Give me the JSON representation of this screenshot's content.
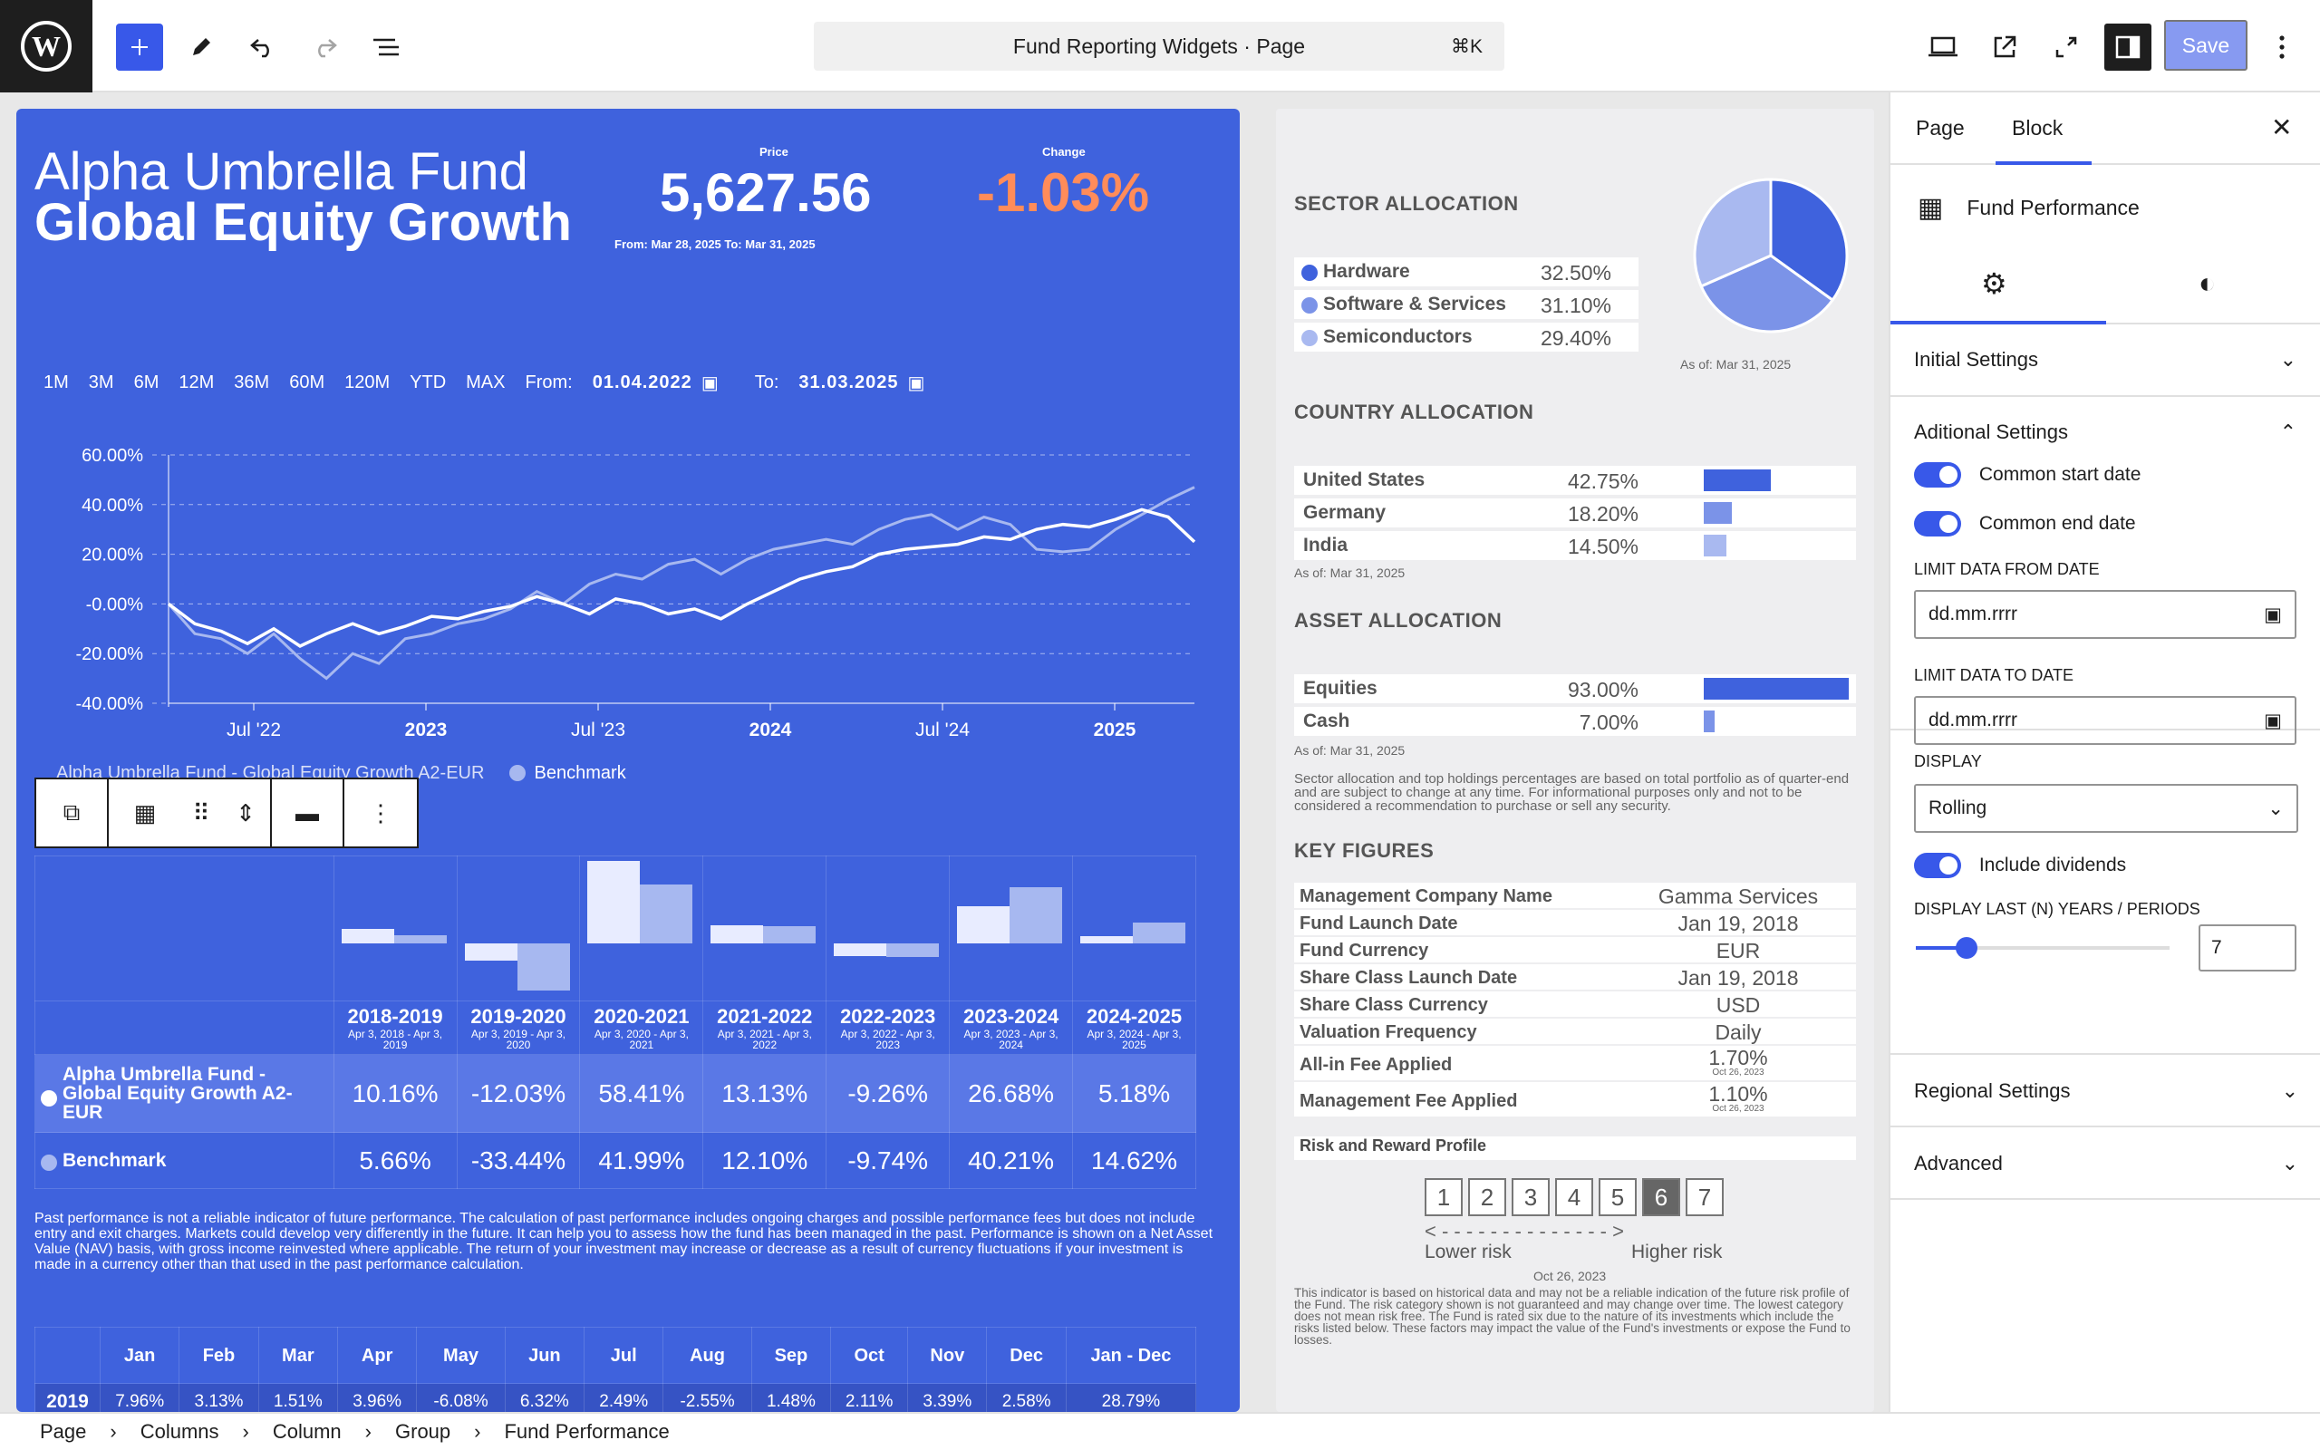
{
  "topbar": {
    "command_title": "Fund Reporting Widgets · Page",
    "shortcut": "⌘K",
    "save_label": "Save"
  },
  "fund": {
    "name_line1": "Alpha Umbrella Fund",
    "name_line2": "Global Equity Growth",
    "price_label": "Price",
    "price": "5,627.56",
    "change_label": "Change",
    "change": "-1.03%",
    "range": "From: Mar 28, 2025 To: Mar 31, 2025"
  },
  "periods": {
    "buttons": [
      "1M",
      "3M",
      "6M",
      "12M",
      "36M",
      "60M",
      "120M",
      "YTD",
      "MAX"
    ],
    "from_label": "From:",
    "from_value": "01.04.2022",
    "to_label": "To:",
    "to_value": "31.03.2025"
  },
  "chart_data": {
    "type": "line",
    "x_ticks": [
      "Jul '22",
      "2023",
      "Jul '23",
      "2024",
      "Jul '24",
      "2025"
    ],
    "y_ticks": [
      "60.00%",
      "40.00%",
      "20.00%",
      "-0.00%",
      "-20.00%",
      "-40.00%"
    ],
    "ylim": [
      -40,
      60
    ],
    "grid": true,
    "series": [
      {
        "name": "Alpha Umbrella Fund - Global Equity Growth A2-EUR",
        "color": "#ffffff",
        "values": [
          0,
          -8,
          -11,
          -16,
          -10,
          -17,
          -12,
          -8,
          -12,
          -9,
          -5,
          -6,
          -3,
          -1,
          3,
          0,
          -4,
          2,
          0,
          -4,
          -2,
          -6,
          0,
          5,
          10,
          13,
          15,
          20,
          22,
          23,
          24,
          27,
          26,
          30,
          32,
          31,
          34,
          38,
          35,
          25
        ]
      },
      {
        "name": "Benchmark",
        "color": "#a7b8f0",
        "values": [
          0,
          -12,
          -14,
          -20,
          -12,
          -22,
          -30,
          -20,
          -24,
          -14,
          -12,
          -8,
          -6,
          -2,
          5,
          0,
          8,
          12,
          10,
          16,
          18,
          12,
          18,
          22,
          24,
          26,
          24,
          30,
          34,
          36,
          30,
          35,
          32,
          22,
          21,
          22,
          30,
          36,
          42,
          47
        ]
      }
    ]
  },
  "block_toolbar": {
    "icons": [
      "duplicate-icon",
      "table-icon",
      "drag-handle-icon",
      "move-icon",
      "align-icon",
      "more-icon"
    ]
  },
  "perf_table": {
    "periods": [
      {
        "year": "2018-2019",
        "range": "Apr 3, 2018 - Apr 3, 2019"
      },
      {
        "year": "2019-2020",
        "range": "Apr 3, 2019 - Apr 3, 2020"
      },
      {
        "year": "2020-2021",
        "range": "Apr 3, 2020 - Apr 3, 2021"
      },
      {
        "year": "2021-2022",
        "range": "Apr 3, 2021 - Apr 3, 2022"
      },
      {
        "year": "2022-2023",
        "range": "Apr 3, 2022 - Apr 3, 2023"
      },
      {
        "year": "2023-2024",
        "range": "Apr 3, 2023 - Apr 3, 2024"
      },
      {
        "year": "2024-2025",
        "range": "Apr 3, 2024 - Apr 3, 2025"
      }
    ],
    "fund_row": {
      "name": "Alpha Umbrella Fund - Global Equity Growth A2-EUR",
      "values": [
        "10.16%",
        "-12.03%",
        "58.41%",
        "13.13%",
        "-9.26%",
        "26.68%",
        "5.18%"
      ],
      "nums": [
        10.16,
        -12.03,
        58.41,
        13.13,
        -9.26,
        26.68,
        5.18
      ]
    },
    "bench_row": {
      "name": "Benchmark",
      "values": [
        "5.66%",
        "-33.44%",
        "41.99%",
        "12.10%",
        "-9.74%",
        "40.21%",
        "14.62%"
      ],
      "nums": [
        5.66,
        -33.44,
        41.99,
        12.1,
        -9.74,
        40.21,
        14.62
      ]
    }
  },
  "disclaimer": "Past performance is not a reliable indicator of future performance. The calculation of past performance includes ongoing charges and possible performance fees but does not include entry and exit charges. Markets could develop very differently in the future. It can help you to assess how the fund has been managed in the past. Performance is shown on a Net Asset Value (NAV) basis, with gross income reinvested where applicable. The return of your investment may increase or decrease as a result of currency fluctuations if your investment is made in a currency other than that used in the past performance calculation.",
  "monthly": {
    "headers": [
      "Jan",
      "Feb",
      "Mar",
      "Apr",
      "May",
      "Jun",
      "Jul",
      "Aug",
      "Sep",
      "Oct",
      "Nov",
      "Dec",
      "Jan - Dec"
    ],
    "row": {
      "year": "2019",
      "values": [
        "7.96%",
        "3.13%",
        "1.51%",
        "3.96%",
        "-6.08%",
        "6.32%",
        "2.49%",
        "-2.55%",
        "1.48%",
        "2.11%",
        "3.39%",
        "2.58%",
        "28.79%"
      ]
    }
  },
  "sector": {
    "title": "SECTOR ALLOCATION",
    "items": [
      {
        "label": "Hardware",
        "value": "32.50%",
        "num": 32.5,
        "color": "#3f62dd"
      },
      {
        "label": "Software & Services",
        "value": "31.10%",
        "num": 31.1,
        "color": "#7b93e8"
      },
      {
        "label": "Semiconductors",
        "value": "29.40%",
        "num": 29.4,
        "color": "#a9b9f0"
      }
    ],
    "as_of": "As of: Mar 31, 2025"
  },
  "country": {
    "title": "COUNTRY ALLOCATION",
    "items": [
      {
        "label": "United States",
        "value": "42.75%",
        "num": 42.75,
        "color": "#3f62dd"
      },
      {
        "label": "Germany",
        "value": "18.20%",
        "num": 18.2,
        "color": "#7b93e8"
      },
      {
        "label": "India",
        "value": "14.50%",
        "num": 14.5,
        "color": "#a9b9f0"
      }
    ],
    "as_of": "As of: Mar 31, 2025"
  },
  "asset": {
    "title": "ASSET ALLOCATION",
    "items": [
      {
        "label": "Equities",
        "value": "93.00%",
        "num": 93,
        "color": "#3f62dd"
      },
      {
        "label": "Cash",
        "value": "7.00%",
        "num": 7,
        "color": "#7b93e8"
      }
    ],
    "as_of": "As of: Mar 31, 2025",
    "note": "Sector allocation and top holdings percentages are based on total portfolio as of quarter-end and are subject to change at any time. For informational purposes only and not to be considered a recommendation to purchase or sell any security."
  },
  "key_figures": {
    "title": "KEY FIGURES",
    "rows": [
      {
        "label": "Management Company Name",
        "value": "Gamma Services",
        "sub": ""
      },
      {
        "label": "Fund Launch Date",
        "value": "Jan 19, 2018",
        "sub": ""
      },
      {
        "label": "Fund Currency",
        "value": "EUR",
        "sub": ""
      },
      {
        "label": "Share Class Launch Date",
        "value": "Jan 19, 2018",
        "sub": ""
      },
      {
        "label": "Share Class Currency",
        "value": "USD",
        "sub": ""
      },
      {
        "label": "Valuation Frequency",
        "value": "Daily",
        "sub": ""
      },
      {
        "label": "All-in Fee Applied",
        "value": "1.70%",
        "sub": "Oct 26, 2023"
      },
      {
        "label": "Management Fee Applied",
        "value": "1.10%",
        "sub": "Oct 26, 2023"
      }
    ],
    "risk_label": "Risk and Reward Profile",
    "risk_levels": [
      "1",
      "2",
      "3",
      "4",
      "5",
      "6",
      "7"
    ],
    "risk_selected": 6,
    "risk_low": "Lower risk",
    "risk_high": "Higher risk",
    "risk_date": "Oct 26, 2023",
    "risk_note": "This indicator is based on historical data and may not be a reliable indication of the future risk profile of the Fund. The risk category shown is not guaranteed and may change over time. The lowest category does not mean risk free. The Fund is rated six due to the nature of its investments which include the risks listed below. These factors may impact the value of the Fund's investments or expose the Fund to losses."
  },
  "sidebar": {
    "tab_page": "Page",
    "tab_block": "Block",
    "block_name": "Fund Performance",
    "initial_settings": "Initial Settings",
    "additional_settings": "Aditional Settings",
    "common_start": "Common start date",
    "common_end": "Common end date",
    "limit_from_label": "LIMIT DATA FROM DATE",
    "limit_from_placeholder": "dd.mm.rrrr",
    "limit_to_label": "LIMIT DATA TO DATE",
    "limit_to_placeholder": "dd.mm.rrrr",
    "display_label": "DISPLAY",
    "display_value": "Rolling",
    "include_dividends": "Include dividends",
    "last_n_label": "DISPLAY LAST (N) YEARS / PERIODS",
    "last_n_value": "7",
    "last_n_fraction": 0.2,
    "regional": "Regional Settings",
    "advanced": "Advanced"
  },
  "breadcrumbs": [
    "Page",
    "Columns",
    "Column",
    "Group",
    "Fund Performance"
  ],
  "colors": {
    "accent": "#3858e9",
    "card_blue": "#3f62dd",
    "change_orange": "#ff8c5a"
  }
}
